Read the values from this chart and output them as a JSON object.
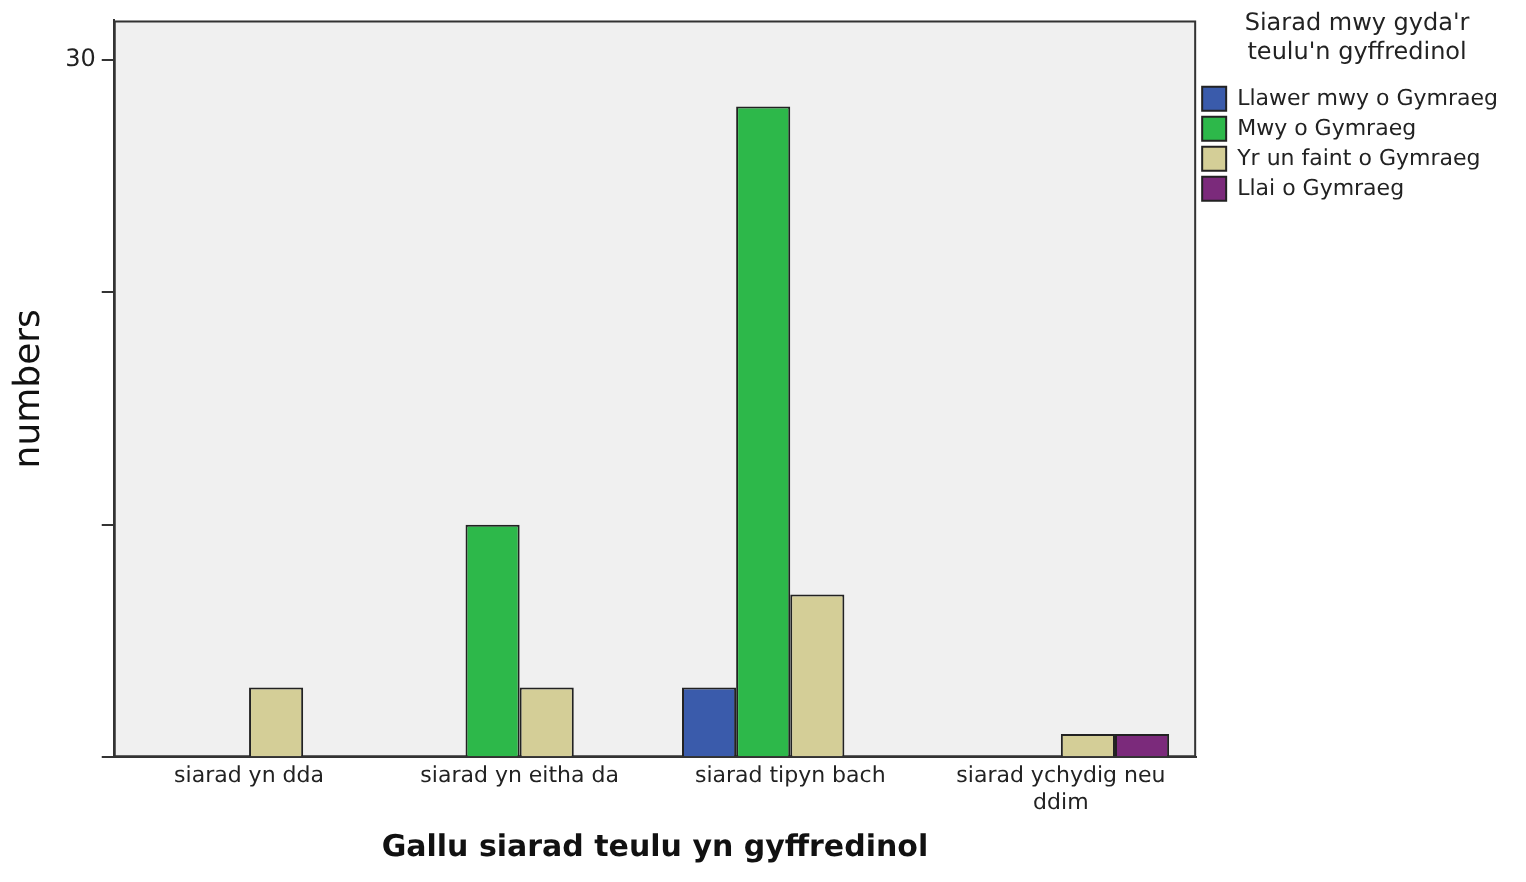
{
  "chart_data": {
    "type": "bar",
    "xlabel": "Gallu siarad teulu yn gyffredinol",
    "ylabel": "numbers",
    "legend_title": "Siarad mwy gyda'r teulu'n gyffredinol",
    "legend": "right",
    "grid": false,
    "categories": [
      "siarad yn dda",
      "siarad yn eitha da",
      "siarad tipyn bach",
      "siarad ychydig neu ddim"
    ],
    "ylim": [
      0,
      31.7
    ],
    "yticks": [
      0,
      {
        "value": 10,
        "label": null
      },
      {
        "value": 20,
        "label": null
      },
      30
    ],
    "series": [
      {
        "name": "Llawer mwy o Gymraeg",
        "color": "#3a5bab",
        "values": [
          null,
          null,
          3,
          null
        ]
      },
      {
        "name": "Mwy o Gymraeg",
        "color": "#2db84a",
        "values": [
          null,
          10,
          28,
          null
        ]
      },
      {
        "name": "Yr un faint o Gymraeg",
        "color": "#d4ce97",
        "values": [
          3,
          3,
          7,
          1
        ]
      },
      {
        "name": "Llai o Gymraeg",
        "color": "#7b2a7b",
        "values": [
          null,
          null,
          null,
          1
        ]
      }
    ]
  }
}
